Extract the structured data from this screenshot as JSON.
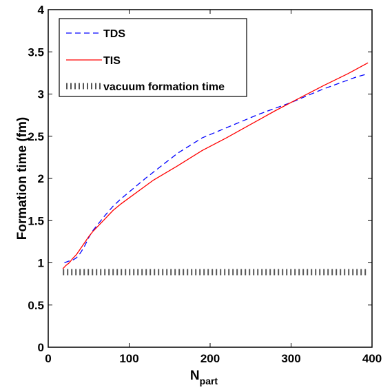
{
  "chart_data": {
    "type": "line",
    "title": "",
    "xlabel": {
      "main": "N",
      "sub": "part"
    },
    "ylabel": "Formation time (fm)",
    "xlim": [
      0,
      400
    ],
    "ylim": [
      0,
      4
    ],
    "xticks": [
      "0",
      "100",
      "200",
      "300",
      "400"
    ],
    "yticks": [
      "0",
      "0.5",
      "1",
      "1.5",
      "2",
      "2.5",
      "3",
      "3.5",
      "4"
    ],
    "grid": false,
    "legend_position": "top-left",
    "series": [
      {
        "name": "TDS",
        "color": "#0000ff",
        "style": "dashed",
        "x": [
          20,
          25,
          30,
          35,
          40,
          45,
          50,
          55,
          60,
          70,
          80,
          90,
          100,
          120,
          140,
          160,
          180,
          190,
          200,
          220,
          240,
          260,
          280,
          300,
          320,
          340,
          360,
          380,
          395
        ],
        "y": [
          1.0,
          1.02,
          1.03,
          1.06,
          1.12,
          1.2,
          1.3,
          1.38,
          1.44,
          1.56,
          1.67,
          1.76,
          1.84,
          2.0,
          2.15,
          2.3,
          2.42,
          2.48,
          2.52,
          2.6,
          2.68,
          2.76,
          2.83,
          2.9,
          2.98,
          3.06,
          3.13,
          3.2,
          3.24
        ]
      },
      {
        "name": "TIS",
        "color": "#ff0000",
        "style": "solid",
        "x": [
          18,
          22,
          26,
          30,
          35,
          40,
          45,
          50,
          55,
          60,
          70,
          80,
          90,
          100,
          130,
          160,
          190,
          220,
          250,
          280,
          310,
          340,
          370,
          395
        ],
        "y": [
          0.93,
          0.97,
          1.0,
          1.05,
          1.1,
          1.17,
          1.24,
          1.31,
          1.37,
          1.42,
          1.52,
          1.62,
          1.7,
          1.77,
          1.98,
          2.15,
          2.33,
          2.48,
          2.64,
          2.8,
          2.95,
          3.1,
          3.24,
          3.37
        ]
      },
      {
        "name": "vacuum formation time",
        "color": "#555555",
        "style": "dotted",
        "x": [
          18,
          395
        ],
        "y": [
          0.89,
          0.89
        ]
      }
    ]
  }
}
